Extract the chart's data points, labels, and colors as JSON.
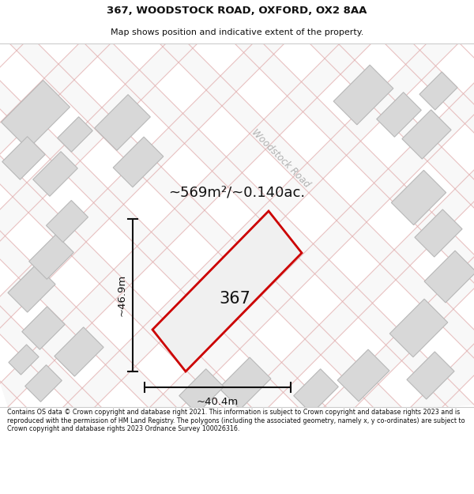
{
  "title_line1": "367, WOODSTOCK ROAD, OXFORD, OX2 8AA",
  "title_line2": "Map shows position and indicative extent of the property.",
  "area_text": "~569m²/~0.140ac.",
  "house_number": "367",
  "dim_width": "~40.4m",
  "dim_height": "~46.9m",
  "road_label": "Woodstock Road",
  "footer_text": "Contains OS data © Crown copyright and database right 2021. This information is subject to Crown copyright and database rights 2023 and is reproduced with the permission of HM Land Registry. The polygons (including the associated geometry, namely x, y co-ordinates) are subject to Crown copyright and database rights 2023 Ordnance Survey 100026316.",
  "map_bg": "#eeeeee",
  "plot_fill": "#f0f0f0",
  "plot_edge_color": "#cc0000",
  "building_fill": "#d8d8d8",
  "building_edge": "#b8b8b8",
  "road_fill": "#f5f5f5",
  "road_line_color": "#e8b0b0",
  "road_border_color": "#dddddd"
}
